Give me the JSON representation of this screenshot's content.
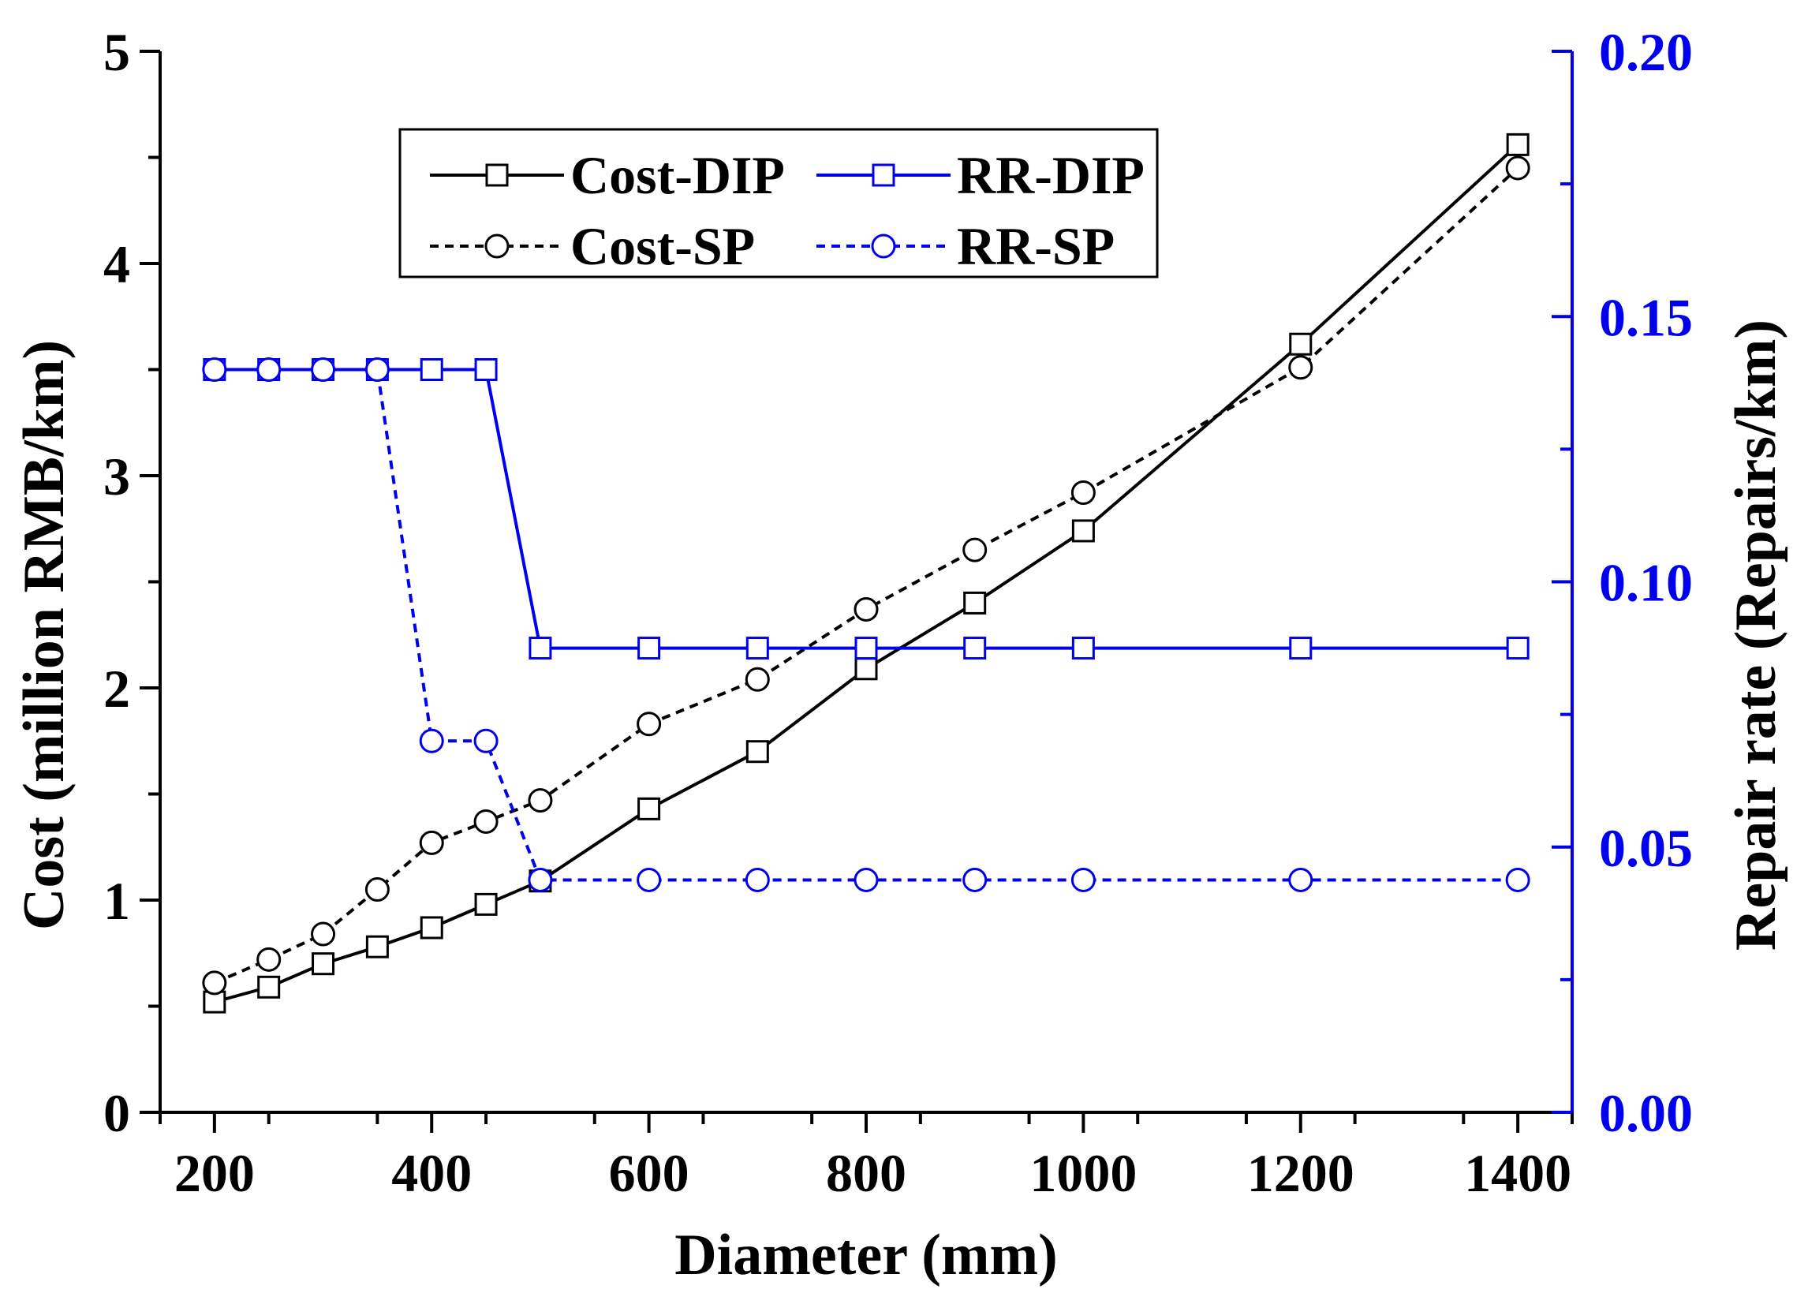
{
  "chart_data": {
    "type": "line",
    "xlabel": "Diameter (mm)",
    "ylabel_left": "Cost (million RMB/km)",
    "ylabel_right": "Repair rate (Repairs/km)",
    "xlim": [
      150,
      1450
    ],
    "ylim_left": [
      0,
      5
    ],
    "ylim_right": [
      0,
      0.2
    ],
    "xticks": [
      200,
      400,
      600,
      800,
      1000,
      1200,
      1400
    ],
    "xtick_labels": [
      "200",
      "400",
      "600",
      "800",
      "1000",
      "1200",
      "1400"
    ],
    "yticks_left": [
      0,
      1,
      2,
      3,
      4,
      5
    ],
    "ytick_labels_left": [
      "0",
      "1",
      "2",
      "3",
      "4",
      "5"
    ],
    "yticks_right": [
      0,
      0.05,
      0.1,
      0.15,
      0.2
    ],
    "ytick_labels_right": [
      "0.00",
      "0.05",
      "0.10",
      "0.15",
      "0.20"
    ],
    "legend_position": "top-center",
    "colors": {
      "cost": "#000000",
      "rr": "#0000ee"
    },
    "x": [
      200,
      250,
      300,
      350,
      400,
      450,
      500,
      600,
      700,
      800,
      900,
      1000,
      1200,
      1400
    ],
    "series": [
      {
        "name": "Cost-DIP",
        "axis": "left",
        "line": "solid",
        "marker": "square",
        "color": "#000000",
        "values": [
          0.52,
          0.59,
          0.7,
          0.78,
          0.87,
          0.98,
          1.09,
          1.43,
          1.7,
          2.09,
          2.4,
          2.74,
          3.62,
          4.56
        ]
      },
      {
        "name": "Cost-SP",
        "axis": "left",
        "line": "dashed",
        "marker": "circle",
        "color": "#000000",
        "values": [
          0.61,
          0.72,
          0.84,
          1.05,
          1.27,
          1.37,
          1.47,
          1.83,
          2.04,
          2.37,
          2.65,
          2.92,
          3.51,
          4.45
        ]
      },
      {
        "name": "RR-DIP",
        "axis": "right",
        "line": "solid",
        "marker": "square",
        "color": "#0000ee",
        "values": [
          0.14,
          0.14,
          0.14,
          0.14,
          0.14,
          0.14,
          0.0875,
          0.0875,
          0.0875,
          0.0875,
          0.0875,
          0.0875,
          0.0875,
          0.0875
        ]
      },
      {
        "name": "RR-SP",
        "axis": "right",
        "line": "dashed",
        "marker": "circle",
        "color": "#0000ee",
        "values": [
          0.14,
          0.14,
          0.14,
          0.14,
          0.07,
          0.07,
          0.0438,
          0.0438,
          0.0438,
          0.0438,
          0.0438,
          0.0438,
          0.0438,
          0.0438
        ]
      }
    ]
  }
}
